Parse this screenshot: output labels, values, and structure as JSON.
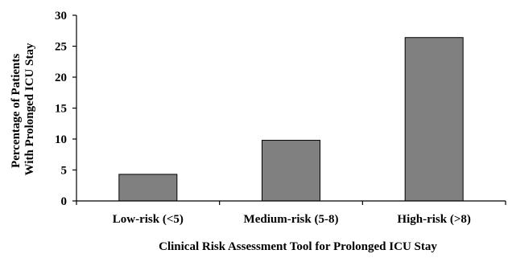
{
  "chart_data": {
    "type": "bar",
    "categories": [
      "Low-risk (<5)",
      "Medium-risk (5-8)",
      "High-risk (>8)"
    ],
    "values": [
      4.3,
      9.8,
      26.4
    ],
    "title": "",
    "xlabel": "Clinical Risk Assessment Tool for Prolonged ICU Stay",
    "ylabel_lines": [
      "Percentage of Patients",
      "With Prolonged ICU Stay"
    ],
    "ylim": [
      0,
      30
    ],
    "yticks": [
      "0",
      "5",
      "10",
      "15",
      "20",
      "25",
      "30"
    ],
    "bar_color": "#808080",
    "grid": false,
    "legend": "none"
  }
}
